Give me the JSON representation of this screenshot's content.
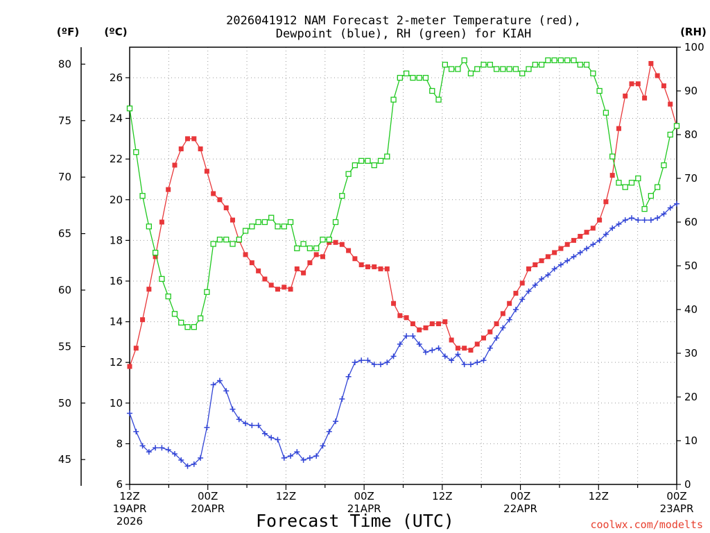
{
  "chart_data": {
    "type": "line",
    "title_lines": [
      "2026041912 NAM Forecast 2-meter Temperature (red),",
      "Dewpoint (blue), RH (green) for KIAH"
    ],
    "x_axis_title": "Forecast Time (UTC)",
    "credit": "coolwx.com/modelts",
    "unit_labels": {
      "fahrenheit": "(ºF)",
      "celsius": "(ºC)",
      "rh": "(RH)"
    },
    "x_forecast_hours": [
      0,
      72
    ],
    "x_ticks": [
      {
        "hour": 0,
        "lines": [
          "12Z",
          "19APR",
          "2026"
        ]
      },
      {
        "hour": 12,
        "lines": [
          "00Z",
          "20APR"
        ]
      },
      {
        "hour": 24,
        "lines": [
          "12Z"
        ]
      },
      {
        "hour": 36,
        "lines": [
          "00Z",
          "21APR"
        ]
      },
      {
        "hour": 48,
        "lines": [
          "12Z"
        ]
      },
      {
        "hour": 60,
        "lines": [
          "00Z",
          "22APR"
        ]
      },
      {
        "hour": 72,
        "lines": [
          "12Z"
        ]
      },
      {
        "hour": 84,
        "lines": [
          "00Z",
          "23APR"
        ]
      }
    ],
    "celsius_axis": {
      "ylim": [
        6,
        27.5
      ],
      "ticks": [
        6,
        8,
        10,
        12,
        14,
        16,
        18,
        20,
        22,
        24,
        26
      ]
    },
    "fahrenheit_axis": {
      "ticks": [
        45,
        50,
        55,
        60,
        65,
        70,
        75,
        80
      ]
    },
    "rh_axis": {
      "ylim": [
        0,
        100
      ],
      "ticks": [
        0,
        10,
        20,
        30,
        40,
        50,
        60,
        70,
        80,
        90,
        100
      ]
    },
    "grid": true,
    "series": [
      {
        "name": "Temperature",
        "axis": "celsius",
        "color": "#e8373a",
        "marker": "filled-square",
        "values": [
          11.8,
          12.7,
          14.1,
          15.6,
          17.2,
          18.9,
          20.5,
          21.7,
          22.5,
          23.0,
          23.0,
          22.5,
          21.4,
          20.3,
          20.0,
          19.6,
          19.0,
          18.0,
          17.3,
          16.9,
          16.5,
          16.1,
          15.8,
          15.6,
          15.7,
          15.6,
          16.6,
          16.4,
          16.9,
          17.3,
          17.2,
          17.9,
          17.9,
          17.8,
          17.5,
          17.1,
          16.8,
          16.7,
          16.7,
          16.6,
          16.6,
          14.9,
          14.3,
          14.2,
          13.9,
          13.6,
          13.7,
          13.9,
          13.9,
          14.0,
          13.1,
          12.7,
          12.7,
          12.6,
          12.9,
          13.2,
          13.5,
          13.9,
          14.4,
          14.9,
          15.4,
          15.9,
          16.6,
          16.8,
          17.0,
          17.2,
          17.4,
          17.6,
          17.8,
          18.0,
          18.2,
          18.4,
          18.6,
          19.0,
          19.9,
          21.2,
          23.5,
          25.1,
          25.7,
          25.7,
          25.0,
          26.7,
          26.1,
          25.6,
          24.7,
          23.6
        ]
      },
      {
        "name": "Dewpoint",
        "axis": "celsius",
        "color": "#3144d6",
        "marker": "plus",
        "values": [
          9.5,
          8.6,
          7.9,
          7.6,
          7.8,
          7.8,
          7.7,
          7.5,
          7.2,
          6.9,
          7.0,
          7.3,
          8.8,
          10.9,
          11.1,
          10.6,
          9.7,
          9.2,
          9.0,
          8.9,
          8.9,
          8.5,
          8.3,
          8.2,
          7.3,
          7.4,
          7.6,
          7.2,
          7.3,
          7.4,
          7.9,
          8.6,
          9.1,
          10.2,
          11.3,
          12.0,
          12.1,
          12.1,
          11.9,
          11.9,
          12.0,
          12.3,
          12.9,
          13.3,
          13.3,
          12.9,
          12.5,
          12.6,
          12.7,
          12.3,
          12.1,
          12.4,
          11.9,
          11.9,
          12.0,
          12.1,
          12.7,
          13.2,
          13.7,
          14.1,
          14.6,
          15.1,
          15.5,
          15.8,
          16.1,
          16.3,
          16.6,
          16.8,
          17.0,
          17.2,
          17.4,
          17.6,
          17.8,
          18.0,
          18.3,
          18.6,
          18.8,
          19.0,
          19.1,
          19.0,
          19.0,
          19.0,
          19.1,
          19.3,
          19.6,
          19.8
        ]
      },
      {
        "name": "RH",
        "axis": "rh",
        "color": "#1fc81f",
        "marker": "open-square",
        "values": [
          86,
          76,
          66,
          59,
          53,
          47,
          43,
          39,
          37,
          36,
          36,
          38,
          44,
          55,
          56,
          56,
          55,
          56,
          58,
          59,
          60,
          60,
          61,
          59,
          59,
          60,
          54,
          55,
          54,
          54,
          56,
          56,
          60,
          66,
          71,
          73,
          74,
          74,
          73,
          74,
          75,
          88,
          93,
          94,
          93,
          93,
          93,
          90,
          88,
          96,
          95,
          95,
          97,
          94,
          95,
          96,
          96,
          95,
          95,
          95,
          95,
          94,
          95,
          96,
          96,
          97,
          97,
          97,
          97,
          97,
          96,
          96,
          94,
          90,
          85,
          75,
          69,
          68,
          69,
          70,
          63,
          66,
          68,
          73,
          80,
          82
        ]
      }
    ]
  }
}
